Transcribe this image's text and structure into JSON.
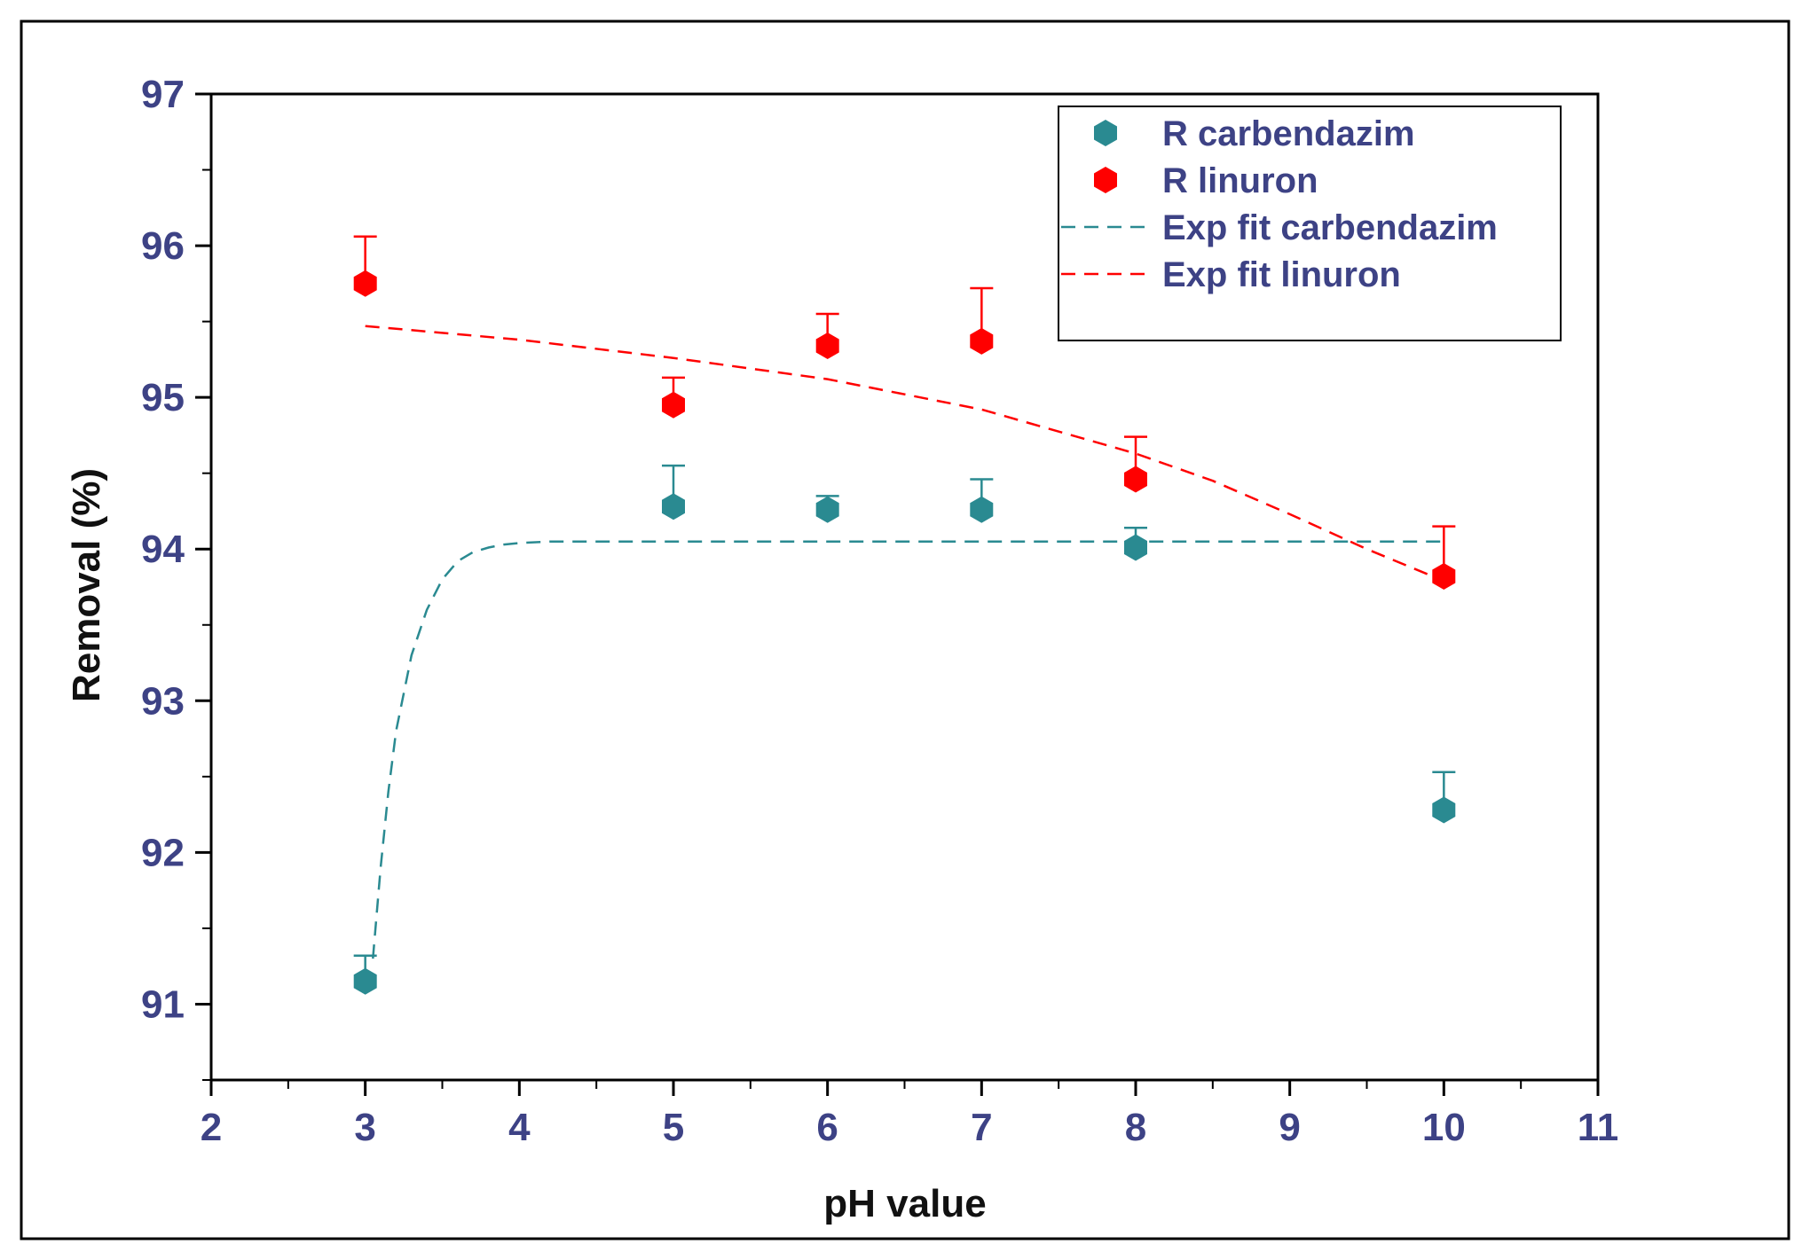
{
  "chart_data": {
    "type": "scatter",
    "title": "",
    "xlabel": "pH value",
    "ylabel": "Removal (%)",
    "xlim": [
      2,
      11
    ],
    "ylim": [
      90.5,
      97
    ],
    "xticks": [
      2,
      3,
      4,
      5,
      6,
      7,
      8,
      9,
      10,
      11
    ],
    "yticks": [
      91,
      92,
      93,
      94,
      95,
      96,
      97
    ],
    "x_minor_step": 0.5,
    "y_minor_step": 0.5,
    "grid": false,
    "legend_position": "top-right",
    "series": [
      {
        "name": "R carbendazim",
        "kind": "points",
        "color": "#2a8a91",
        "marker": "hexagon",
        "points": [
          {
            "x": 3,
            "y": 91.15,
            "err": 0.17
          },
          {
            "x": 5,
            "y": 94.28,
            "err": 0.27
          },
          {
            "x": 6,
            "y": 94.26,
            "err": 0.09
          },
          {
            "x": 7,
            "y": 94.26,
            "err": 0.2
          },
          {
            "x": 8,
            "y": 94.01,
            "err": 0.13
          },
          {
            "x": 10,
            "y": 92.28,
            "err": 0.25
          }
        ]
      },
      {
        "name": "R linuron",
        "kind": "points",
        "color": "#ff0000",
        "marker": "hexagon",
        "points": [
          {
            "x": 3,
            "y": 95.75,
            "err": 0.31
          },
          {
            "x": 5,
            "y": 94.95,
            "err": 0.18
          },
          {
            "x": 6,
            "y": 95.34,
            "err": 0.21
          },
          {
            "x": 7,
            "y": 95.37,
            "err": 0.35
          },
          {
            "x": 8,
            "y": 94.46,
            "err": 0.28
          },
          {
            "x": 10,
            "y": 93.82,
            "err": 0.33
          }
        ]
      },
      {
        "name": "Exp fit carbendazim",
        "kind": "dashed-line",
        "color": "#2a8a91",
        "x": [
          3.05,
          3.1,
          3.15,
          3.2,
          3.3,
          3.4,
          3.5,
          3.6,
          3.7,
          3.8,
          3.9,
          4.0,
          4.2,
          4.5,
          5.0,
          6.0,
          7.0,
          8.0,
          9.0,
          10.0
        ],
        "y": [
          91.3,
          91.9,
          92.4,
          92.8,
          93.3,
          93.6,
          93.8,
          93.92,
          93.98,
          94.01,
          94.03,
          94.04,
          94.05,
          94.05,
          94.05,
          94.05,
          94.05,
          94.05,
          94.05,
          94.05
        ]
      },
      {
        "name": "Exp fit linuron",
        "kind": "dashed-line",
        "color": "#ff0000",
        "x": [
          3,
          4,
          5,
          6,
          7,
          8,
          8.5,
          9,
          9.5,
          10
        ],
        "y": [
          95.47,
          95.38,
          95.26,
          95.12,
          94.92,
          94.63,
          94.45,
          94.23,
          94.0,
          93.79
        ]
      }
    ]
  }
}
